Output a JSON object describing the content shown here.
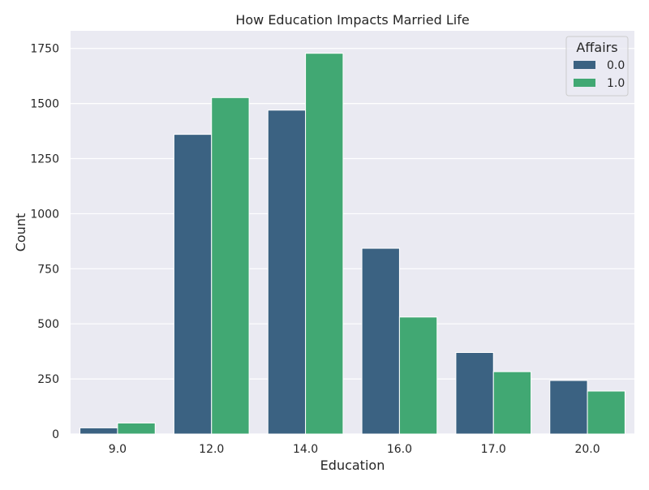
{
  "chart_data": {
    "type": "bar",
    "title": "How Education Impacts Married Life",
    "xlabel": "Education",
    "ylabel": "Count",
    "categories": [
      "9.0",
      "12.0",
      "14.0",
      "16.0",
      "17.0",
      "20.0"
    ],
    "series": [
      {
        "name": "0.0",
        "color": "#3b6282",
        "values": [
          28,
          1360,
          1470,
          843,
          370,
          243
        ]
      },
      {
        "name": "1.0",
        "color": "#41a873",
        "values": [
          50,
          1527,
          1728,
          531,
          283,
          195
        ]
      }
    ],
    "ylim": [
      0,
      1830
    ],
    "yticks": [
      0,
      250,
      500,
      750,
      1000,
      1250,
      1500,
      1750
    ],
    "ytick_labels": [
      "0",
      "250",
      "500",
      "750",
      "1000",
      "1250",
      "1500",
      "1750"
    ],
    "grid": true,
    "legend": {
      "title": "Affairs",
      "placement": "top-right"
    },
    "background_color": "#eaeaf2",
    "grid_color": "#ffffff"
  }
}
